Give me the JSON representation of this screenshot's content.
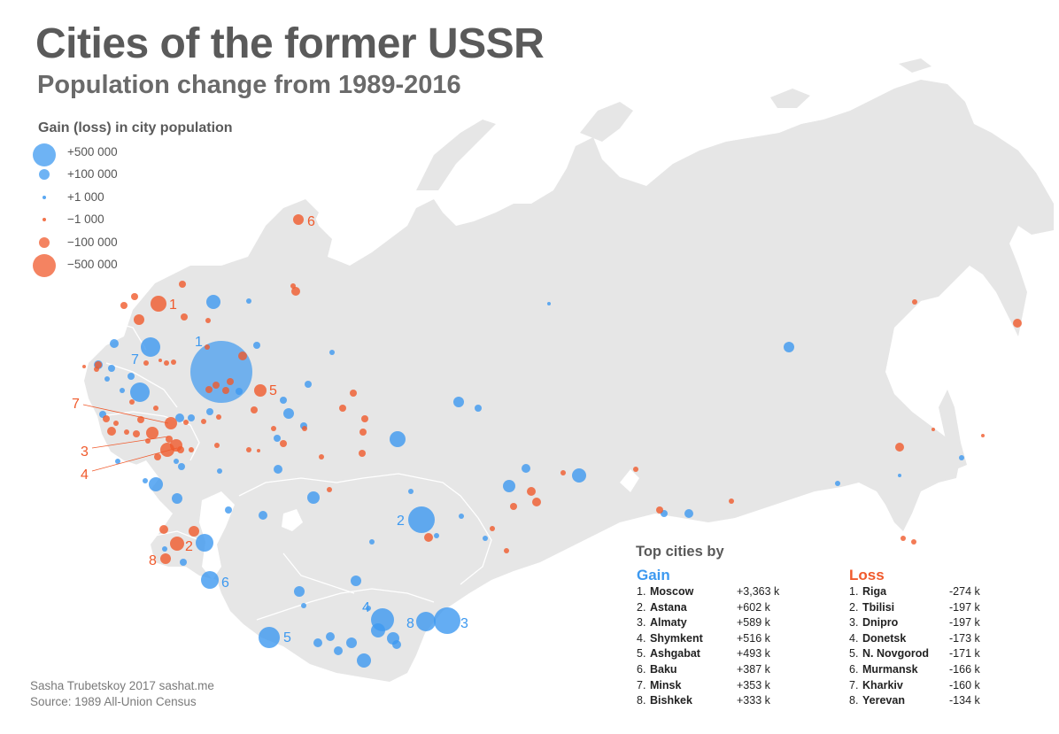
{
  "title": "Cities of the former USSR",
  "subtitle": "Population change from 1989-2016",
  "colors": {
    "gain": "#3d99f0",
    "loss": "#f05a2c",
    "land": "#e6e6e6"
  },
  "legend": {
    "title": "Gain (loss) in city population",
    "items": [
      {
        "label": "+500 000",
        "kind": "gain",
        "value": 500000
      },
      {
        "label": "+100 000",
        "kind": "gain",
        "value": 100000
      },
      {
        "label": "+1 000",
        "kind": "gain",
        "value": 1000
      },
      {
        "label": "−1 000",
        "kind": "loss",
        "value": -1000
      },
      {
        "label": "−100 000",
        "kind": "loss",
        "value": -100000
      },
      {
        "label": "−500 000",
        "kind": "loss",
        "value": -500000
      }
    ]
  },
  "credits": [
    "Sasha Trubetskoy 2017 sashat.me",
    "Source: 1989 All-Union Census"
  ],
  "top_cities": {
    "title": "Top cities by",
    "gain_label": "Gain",
    "loss_label": "Loss",
    "gain": [
      {
        "rank": "1.",
        "city": "Moscow",
        "value": "+3,363 k"
      },
      {
        "rank": "2.",
        "city": "Astana",
        "value": "+602 k"
      },
      {
        "rank": "3.",
        "city": "Almaty",
        "value": "+589 k"
      },
      {
        "rank": "4.",
        "city": "Shymkent",
        "value": "+516 k"
      },
      {
        "rank": "5.",
        "city": "Ashgabat",
        "value": "+493 k"
      },
      {
        "rank": "6.",
        "city": "Baku",
        "value": "+387 k"
      },
      {
        "rank": "7.",
        "city": "Minsk",
        "value": "+353 k"
      },
      {
        "rank": "8.",
        "city": "Bishkek",
        "value": "+333 k"
      }
    ],
    "loss": [
      {
        "rank": "1.",
        "city": "Riga",
        "value": "-274 k"
      },
      {
        "rank": "2.",
        "city": "Tbilisi",
        "value": "-197 k"
      },
      {
        "rank": "3.",
        "city": "Dnipro",
        "value": "-197 k"
      },
      {
        "rank": "4.",
        "city": "Donetsk",
        "value": "-173 k"
      },
      {
        "rank": "5.",
        "city": "N. Novgorod",
        "value": "-171 k"
      },
      {
        "rank": "6.",
        "city": "Murmansk",
        "value": "-166 k"
      },
      {
        "rank": "7.",
        "city": "Kharkiv",
        "value": "-160 k"
      },
      {
        "rank": "8.",
        "city": "Yerevan",
        "value": "-134 k"
      }
    ]
  },
  "map_labels": {
    "gain": [
      "1",
      "2",
      "3",
      "4",
      "5",
      "6",
      "7",
      "8"
    ],
    "loss": [
      "1",
      "2",
      "3",
      "4",
      "5",
      "6",
      "7",
      "8"
    ]
  }
}
